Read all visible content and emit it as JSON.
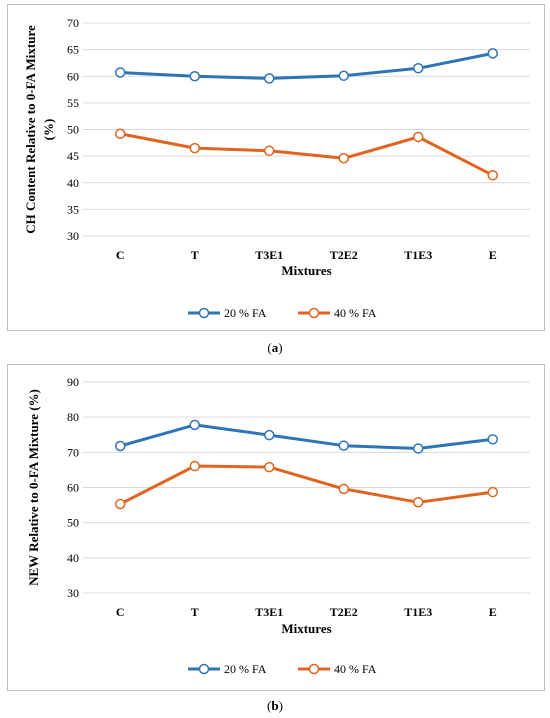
{
  "chart_data": [
    {
      "type": "line",
      "panel_label": "a",
      "categories": [
        "C",
        "T",
        "T3E1",
        "T2E2",
        "T1E3",
        "E"
      ],
      "series": [
        {
          "name": "20 % FA",
          "color": "#2e75b6",
          "values": [
            60.7,
            60.0,
            59.6,
            60.1,
            61.5,
            64.3
          ]
        },
        {
          "name": "40 % FA",
          "color": "#e0641f",
          "values": [
            49.2,
            46.5,
            46.0,
            44.6,
            48.6,
            41.4
          ]
        }
      ],
      "title": "",
      "xlabel": "Mixtures",
      "ylabel_line1": "CH Content Relative to 0-FA Mixture",
      "ylabel_line2": "(%)",
      "ylim": [
        30,
        70
      ],
      "yticks": [
        "30",
        "35",
        "40",
        "45",
        "50",
        "55",
        "60",
        "65",
        "70"
      ],
      "grid": true,
      "legend": "bottom"
    },
    {
      "type": "line",
      "panel_label": "b",
      "categories": [
        "C",
        "T",
        "T3E1",
        "T2E2",
        "T1E3",
        "E"
      ],
      "series": [
        {
          "name": "20 % FA",
          "color": "#2e75b6",
          "values": [
            71.8,
            77.8,
            74.9,
            71.9,
            71.1,
            73.7
          ]
        },
        {
          "name": "40 % FA",
          "color": "#e0641f",
          "values": [
            55.3,
            66.1,
            65.8,
            59.6,
            55.8,
            58.7
          ]
        }
      ],
      "title": "",
      "xlabel": "Mixtures",
      "ylabel_line1": "NEW Relative to 0-FA Mixture (%)",
      "ylabel_line2": "",
      "ylim": [
        30,
        90
      ],
      "yticks": [
        "30",
        "40",
        "50",
        "60",
        "70",
        "80",
        "90"
      ],
      "grid": true,
      "legend": "bottom"
    }
  ]
}
